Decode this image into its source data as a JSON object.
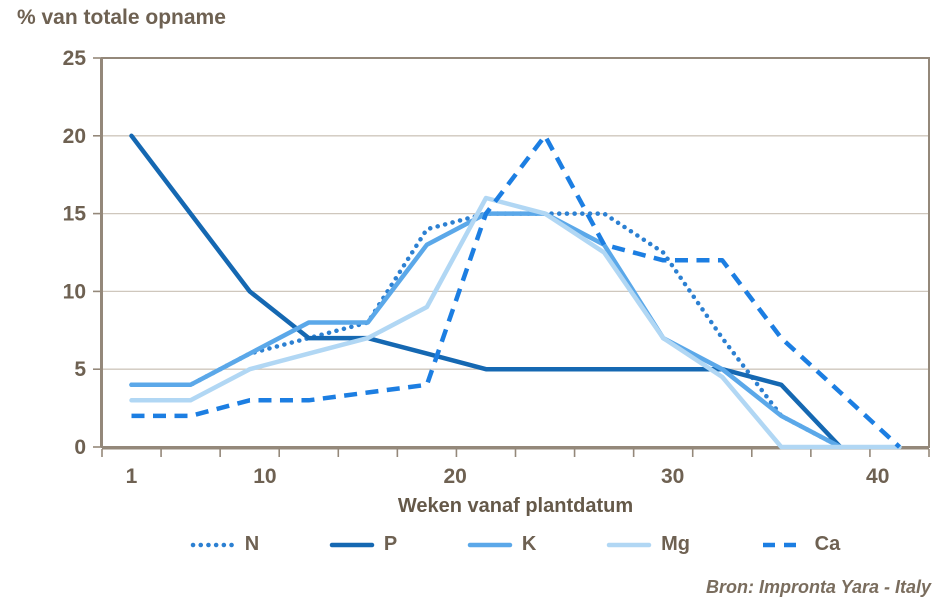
{
  "page": {
    "source": "Bron: Impronta Yara - Italy"
  },
  "chart_data": {
    "type": "line",
    "title": "% van totale opname",
    "xlabel": "Weken vanaf plantdatum",
    "ylabel": "% van totale opname",
    "ylim": [
      0,
      25
    ],
    "y_ticks": [
      0,
      5,
      10,
      15,
      20,
      25
    ],
    "x_tick_labels": [
      "1",
      "10",
      "20",
      "30",
      "40"
    ],
    "grid": "horizontal",
    "legend_position": "bottom",
    "categories_weeks": [
      1,
      4,
      7,
      10,
      13,
      16,
      19,
      22,
      25,
      28,
      31,
      34,
      37,
      40
    ],
    "series": [
      {
        "name": "N",
        "style": "dotted",
        "color": "#2c80d2",
        "values": [
          4,
          4,
          6,
          7,
          8,
          14,
          15,
          15,
          15,
          12.5,
          7,
          2,
          0,
          null
        ]
      },
      {
        "name": "P",
        "style": "solid",
        "color": "#1568b2",
        "values": [
          20,
          15,
          10,
          7,
          7,
          6,
          5,
          5,
          5,
          5,
          5,
          4,
          0,
          null
        ]
      },
      {
        "name": "K",
        "style": "solid",
        "color": "#5ba8e9",
        "values": [
          4,
          4,
          6,
          8,
          8,
          13,
          15,
          15,
          13,
          7,
          5,
          2,
          0,
          null
        ]
      },
      {
        "name": "Mg",
        "style": "solid",
        "color": "#b1d7f4",
        "values": [
          3,
          3,
          5,
          6,
          7,
          9,
          16,
          15,
          12.5,
          7,
          4.5,
          0,
          0,
          0
        ]
      },
      {
        "name": "Ca",
        "style": "dashed",
        "color": "#1c7ee2",
        "values": [
          2,
          2,
          3,
          3,
          3.5,
          4,
          15,
          20,
          13,
          12,
          12,
          7,
          3.5,
          0
        ]
      }
    ]
  },
  "colors": {
    "text": "#6e6152",
    "axis": "#94887a",
    "grid": "#cfc7bd",
    "background": "#ffffff"
  }
}
